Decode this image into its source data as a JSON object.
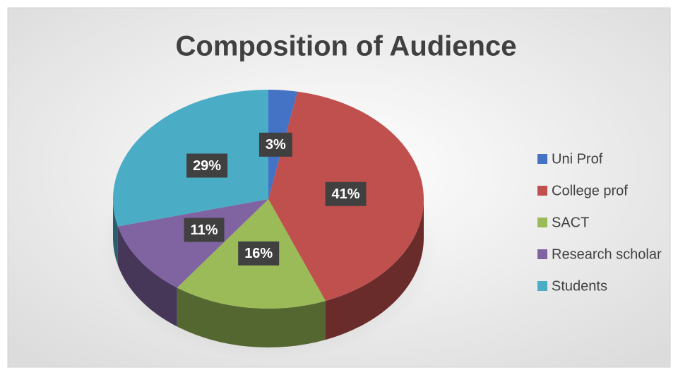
{
  "chart_data": {
    "type": "pie3d",
    "title": "Composition of Audience",
    "categories": [
      "Uni Prof",
      "College prof",
      "SACT",
      "Research scholar",
      "Students"
    ],
    "values": [
      3,
      41,
      16,
      11,
      29
    ],
    "value_labels": [
      "3%",
      "41%",
      "16%",
      "11%",
      "29%"
    ],
    "colors": [
      "#4472c4",
      "#c0504d",
      "#9bbb59",
      "#8064a2",
      "#4bacc6"
    ],
    "legend": "right"
  }
}
